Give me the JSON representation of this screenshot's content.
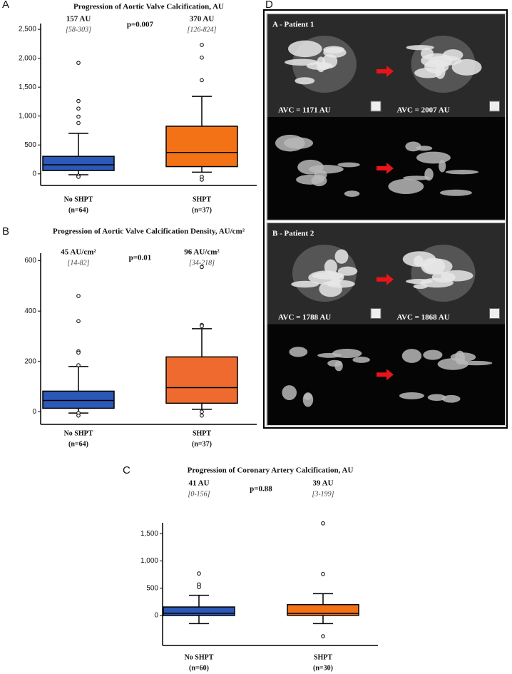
{
  "chart_data": [
    {
      "type": "box",
      "panel": "A",
      "title": "Progression of Aortic Valve Calcification, AU",
      "categories": [
        "No SHPT",
        "SHPT"
      ],
      "category_notes": [
        "(n=64)",
        "(n=37)"
      ],
      "stat_labels": [
        "157 AU",
        "370 AU"
      ],
      "iqr_labels": [
        "[58-303]",
        "[126-824]"
      ],
      "p_label": "p=0.007",
      "colors": [
        "#2c58b8",
        "#f47216"
      ],
      "boxes": [
        {
          "min": -15,
          "q1": 58,
          "median": 157,
          "q3": 303,
          "max": 700,
          "outliers": [
            1920,
            1260,
            1130,
            990,
            880,
            -30,
            -50
          ]
        },
        {
          "min": 30,
          "q1": 126,
          "median": 370,
          "q3": 824,
          "max": 1340,
          "outliers": [
            2230,
            2010,
            1620,
            -50,
            -100
          ]
        }
      ],
      "ylim": [
        -200,
        2600
      ],
      "yticks": [
        0,
        500,
        {
          "value": 1000,
          "label": "1,000"
        },
        {
          "value": 1500,
          "label": "1,500"
        },
        {
          "value": 2000,
          "label": "2,000"
        },
        {
          "value": 2500,
          "label": "2,500"
        }
      ]
    },
    {
      "type": "box",
      "panel": "B",
      "title": "Progression of Aortic Valve Calcification Density, AU/cm²",
      "categories": [
        "No SHPT",
        "SHPT"
      ],
      "category_notes": [
        "(n=64)",
        "(n=37)"
      ],
      "stat_labels": [
        "45 AU/cm²",
        "96 AU/cm²"
      ],
      "iqr_labels": [
        "[14-82]",
        "[34-218]"
      ],
      "p_label": "p=0.01",
      "colors": [
        "#2c58b8",
        "#ef6a2e"
      ],
      "boxes": [
        {
          "min": -5,
          "q1": 14,
          "median": 45,
          "q3": 82,
          "max": 180,
          "outliers": [
            460,
            360,
            240,
            235,
            185,
            -5,
            -15
          ]
        },
        {
          "min": 10,
          "q1": 34,
          "median": 96,
          "q3": 218,
          "max": 330,
          "outliers": [
            575,
            345,
            340,
            0,
            -15
          ]
        }
      ],
      "ylim": [
        -50,
        630
      ],
      "yticks": [
        0,
        200,
        400,
        600
      ]
    },
    {
      "type": "box",
      "panel": "C",
      "title": "Progression of Coronary Artery Calcification, AU",
      "categories": [
        "No SHPT",
        "SHPT"
      ],
      "category_notes": [
        "(n=60)",
        "(n=30)"
      ],
      "stat_labels": [
        "41 AU",
        "39 AU"
      ],
      "iqr_labels": [
        "[0-156]",
        "[3-199]"
      ],
      "p_label": "p=0.88",
      "colors": [
        "#2c58b8",
        "#f47216"
      ],
      "boxes": [
        {
          "min": -150,
          "q1": 0,
          "median": 41,
          "q3": 156,
          "max": 370,
          "outliers": [
            770,
            570,
            520
          ]
        },
        {
          "min": -150,
          "q1": 3,
          "median": 39,
          "q3": 199,
          "max": 400,
          "outliers": [
            1690,
            760,
            -380
          ]
        }
      ],
      "ylim": [
        -550,
        1700
      ],
      "yticks": [
        0,
        500,
        {
          "value": 1000,
          "label": "1,000"
        },
        {
          "value": 1500,
          "label": "1,500"
        }
      ]
    }
  ],
  "panel_d": {
    "label": "D",
    "cases": [
      {
        "title": "A - Patient 1",
        "before": "AVC = 1171 AU",
        "after": "AVC = 2007 AU"
      },
      {
        "title": "B - Patient 2",
        "before": "AVC = 1788 AU",
        "after": "AVC = 1868 AU"
      }
    ]
  }
}
